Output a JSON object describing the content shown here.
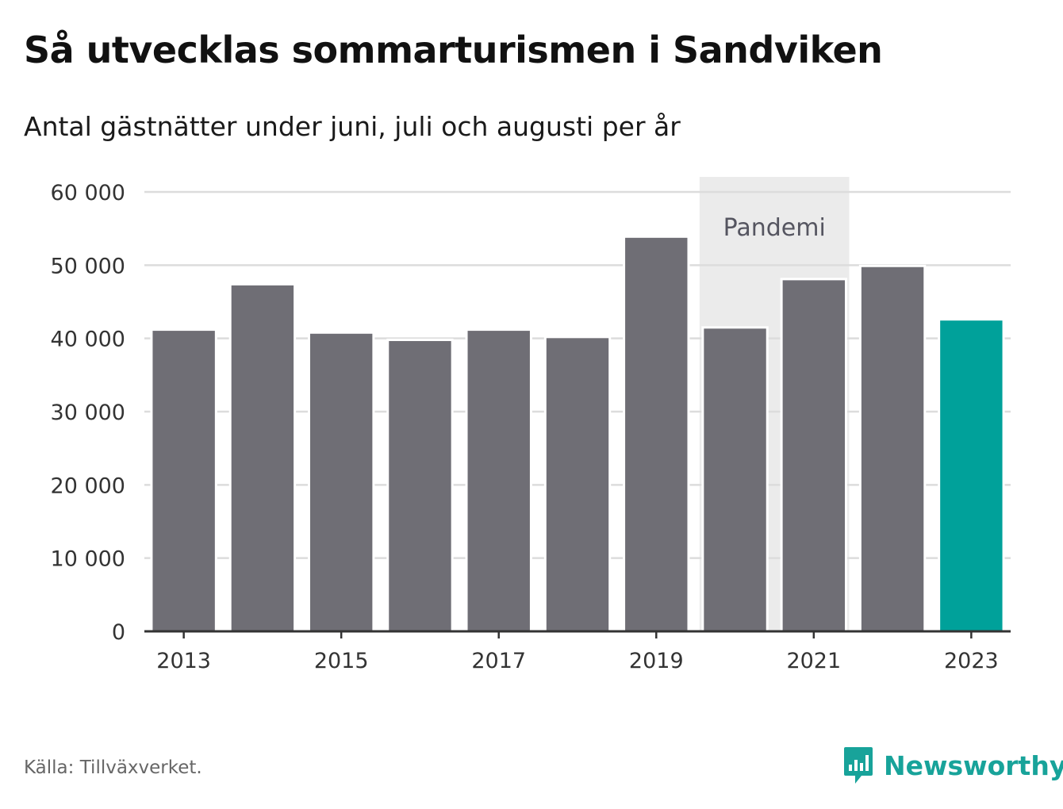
{
  "title": "Så utvecklas sommarturismen i Sandviken",
  "subtitle": "Antal gästnätter under juni, juli och augusti per år",
  "source": "Källa: Tillväxverket.",
  "brand": {
    "name": "Newsworthy",
    "icon": "newsworthy-logo-icon",
    "color": "#18a39a"
  },
  "colors": {
    "bar": "#6f6e75",
    "highlight": "#00a19a",
    "band": "#ebebeb",
    "grid": "#dcdcdc",
    "axis": "#333333"
  },
  "chart_data": {
    "type": "bar",
    "categories": [
      "2013",
      "2014",
      "2015",
      "2016",
      "2017",
      "2018",
      "2019",
      "2020",
      "2021",
      "2022",
      "2023"
    ],
    "values": [
      41200,
      47400,
      40800,
      39800,
      41200,
      40200,
      53900,
      41500,
      48100,
      49900,
      42600
    ],
    "highlight_index": 10,
    "tick_labels": [
      "2013",
      "2015",
      "2017",
      "2019",
      "2021",
      "2023"
    ],
    "yticks": [
      "0",
      "10 000",
      "20 000",
      "30 000",
      "40 000",
      "50 000",
      "60 000"
    ],
    "ylim": [
      0,
      60000
    ],
    "ytick_step": 10000,
    "grid": true,
    "xlabel": "",
    "ylabel": "",
    "annotation": {
      "label": "Pandemi",
      "from": "2020",
      "to": "2021"
    }
  }
}
